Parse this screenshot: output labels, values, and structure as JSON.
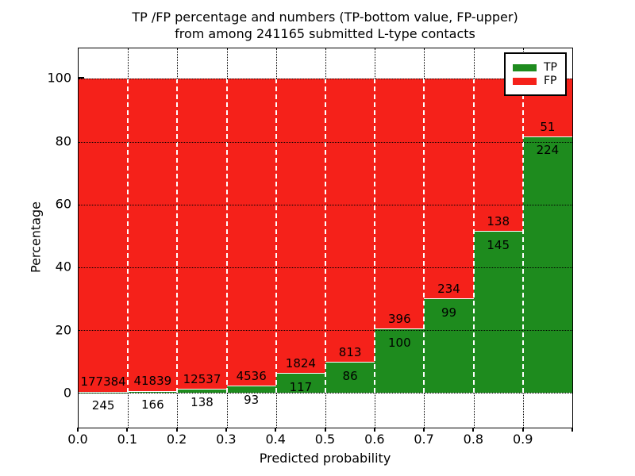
{
  "chart_data": {
    "type": "bar",
    "variant": "stacked-percentage-histogram",
    "title_lines": [
      "TP /FP percentage and numbers (TP-bottom value, FP-upper)",
      "from among 241165 submitted L-type contacts"
    ],
    "xlabel": "Predicted probability",
    "ylabel": "Percentage",
    "categories": [
      "0.0-0.1",
      "0.1-0.2",
      "0.2-0.3",
      "0.3-0.4",
      "0.4-0.5",
      "0.5-0.6",
      "0.6-0.7",
      "0.7-0.8",
      "0.8-0.9",
      "0.9-1.0"
    ],
    "x_tick_labels": [
      "0.0",
      "0.1",
      "0.2",
      "0.3",
      "0.4",
      "0.5",
      "0.6",
      "0.7",
      "0.8",
      "0.9"
    ],
    "y_ticks": [
      0,
      20,
      40,
      60,
      80,
      100
    ],
    "xlim": [
      0.0,
      1.0
    ],
    "ylim": [
      -11.1,
      109.7
    ],
    "bin_width": 0.1,
    "grid": {
      "show": true,
      "style": "dotted",
      "color": "#000000"
    },
    "series": [
      {
        "name": "TP",
        "color": "#1e8b1e",
        "counts": [
          245,
          166,
          138,
          93,
          117,
          86,
          100,
          99,
          145,
          224
        ]
      },
      {
        "name": "FP",
        "color": "#f5211a",
        "counts": [
          177384,
          41839,
          12537,
          4536,
          1824,
          813,
          396,
          234,
          138,
          51
        ]
      }
    ],
    "legend": {
      "position": "upper-right",
      "entries": [
        "TP",
        "FP"
      ]
    },
    "bars_total_percent": 100
  }
}
